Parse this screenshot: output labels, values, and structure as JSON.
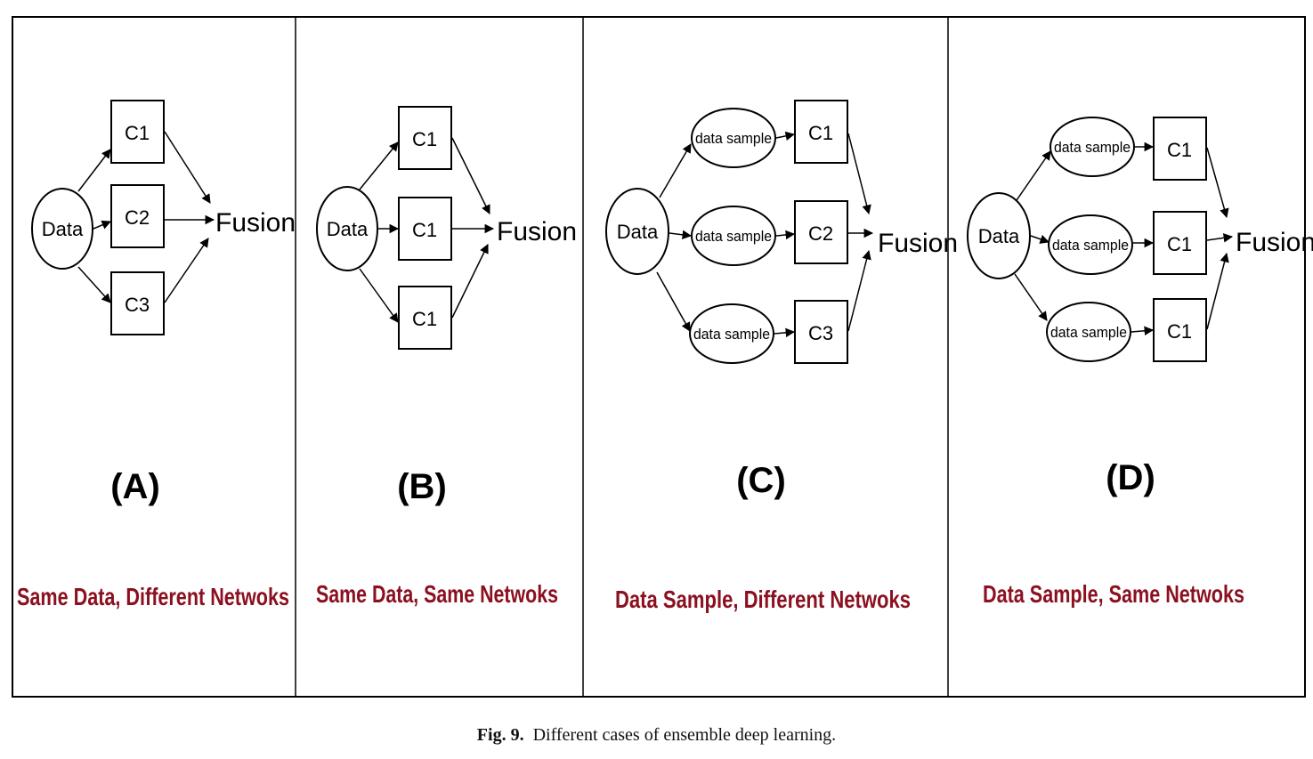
{
  "figure_caption": {
    "label": "Fig. 9.",
    "text": "Different cases of ensemble deep learning."
  },
  "panels": [
    {
      "letter": "(A)",
      "caption": "Same Data, Different Netwoks",
      "data_label": "Data",
      "classifiers": [
        "C1",
        "C2",
        "C3"
      ],
      "fusion_label": "Fusion"
    },
    {
      "letter": "(B)",
      "caption": "Same Data, Same Netwoks",
      "data_label": "Data",
      "classifiers": [
        "C1",
        "C1",
        "C1"
      ],
      "fusion_label": "Fusion"
    },
    {
      "letter": "(C)",
      "caption": "Data Sample, Different  Netwoks",
      "data_label": "Data",
      "sample_label": "data sample",
      "classifiers": [
        "C1",
        "C2",
        "C3"
      ],
      "fusion_label": "Fusion"
    },
    {
      "letter": "(D)",
      "caption": "Data Sample, Same  Netwoks",
      "data_label": "Data",
      "sample_label": "data sample",
      "classifiers": [
        "C1",
        "C1",
        "C1"
      ],
      "fusion_label": "Fusion"
    }
  ]
}
